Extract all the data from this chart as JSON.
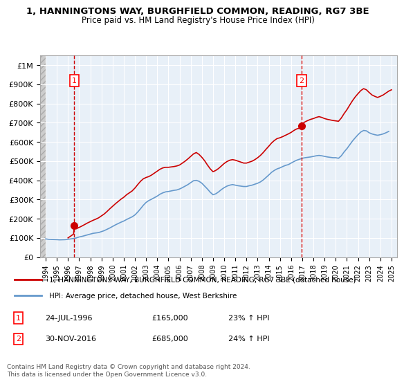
{
  "title": "1, HANNINGTONS WAY, BURGHFIELD COMMON, READING, RG7 3BE",
  "subtitle": "Price paid vs. HM Land Registry's House Price Index (HPI)",
  "legend_line1": "1, HANNINGTONS WAY, BURGHFIELD COMMON, READING, RG7 3BE (detached house)",
  "legend_line2": "HPI: Average price, detached house, West Berkshire",
  "annotation1": {
    "num": "1",
    "date": "24-JUL-1996",
    "price": "£165,000",
    "pct": "23% ↑ HPI",
    "x_year": 1996.56
  },
  "annotation2": {
    "num": "2",
    "date": "30-NOV-2016",
    "price": "£685,000",
    "pct": "24% ↑ HPI",
    "x_year": 2016.92
  },
  "footer": "Contains HM Land Registry data © Crown copyright and database right 2024.\nThis data is licensed under the Open Government Licence v3.0.",
  "ylim": [
    0,
    1050000
  ],
  "yticks": [
    0,
    100000,
    200000,
    300000,
    400000,
    500000,
    600000,
    700000,
    800000,
    900000,
    1000000
  ],
  "ytick_labels": [
    "£0",
    "£100K",
    "£200K",
    "£300K",
    "£400K",
    "£500K",
    "£600K",
    "£700K",
    "£800K",
    "£900K",
    "£1M"
  ],
  "xlim": [
    1993.5,
    2025.5
  ],
  "xticks": [
    1994,
    1995,
    1996,
    1997,
    1998,
    1999,
    2000,
    2001,
    2002,
    2003,
    2004,
    2005,
    2006,
    2007,
    2008,
    2009,
    2010,
    2011,
    2012,
    2013,
    2014,
    2015,
    2016,
    2017,
    2018,
    2019,
    2020,
    2021,
    2022,
    2023,
    2024,
    2025
  ],
  "hpi_color": "#6699cc",
  "price_color": "#cc0000",
  "dot_color": "#cc0000",
  "dashed_color": "#cc0000",
  "background_plot": "#e8f0f8",
  "background_hatch": "#d8d8d8",
  "hpi_data": [
    [
      1994.0,
      95000
    ],
    [
      1994.25,
      93000
    ],
    [
      1994.5,
      92000
    ],
    [
      1994.75,
      91500
    ],
    [
      1995.0,
      91000
    ],
    [
      1995.25,
      90000
    ],
    [
      1995.5,
      90500
    ],
    [
      1995.75,
      91000
    ],
    [
      1996.0,
      93000
    ],
    [
      1996.25,
      95000
    ],
    [
      1996.5,
      97000
    ],
    [
      1996.75,
      100000
    ],
    [
      1997.0,
      105000
    ],
    [
      1997.25,
      108000
    ],
    [
      1997.5,
      112000
    ],
    [
      1997.75,
      116000
    ],
    [
      1998.0,
      120000
    ],
    [
      1998.25,
      124000
    ],
    [
      1998.5,
      126000
    ],
    [
      1998.75,
      128000
    ],
    [
      1999.0,
      133000
    ],
    [
      1999.25,
      138000
    ],
    [
      1999.5,
      145000
    ],
    [
      1999.75,
      152000
    ],
    [
      2000.0,
      160000
    ],
    [
      2000.25,
      168000
    ],
    [
      2000.5,
      175000
    ],
    [
      2000.75,
      182000
    ],
    [
      2001.0,
      188000
    ],
    [
      2001.25,
      196000
    ],
    [
      2001.5,
      203000
    ],
    [
      2001.75,
      210000
    ],
    [
      2002.0,
      220000
    ],
    [
      2002.25,
      235000
    ],
    [
      2002.5,
      252000
    ],
    [
      2002.75,
      270000
    ],
    [
      2003.0,
      285000
    ],
    [
      2003.25,
      295000
    ],
    [
      2003.5,
      302000
    ],
    [
      2003.75,
      310000
    ],
    [
      2004.0,
      318000
    ],
    [
      2004.25,
      328000
    ],
    [
      2004.5,
      335000
    ],
    [
      2004.75,
      340000
    ],
    [
      2005.0,
      342000
    ],
    [
      2005.25,
      345000
    ],
    [
      2005.5,
      348000
    ],
    [
      2005.75,
      350000
    ],
    [
      2006.0,
      355000
    ],
    [
      2006.25,
      362000
    ],
    [
      2006.5,
      370000
    ],
    [
      2006.75,
      378000
    ],
    [
      2007.0,
      388000
    ],
    [
      2007.25,
      398000
    ],
    [
      2007.5,
      400000
    ],
    [
      2007.75,
      395000
    ],
    [
      2008.0,
      385000
    ],
    [
      2008.25,
      370000
    ],
    [
      2008.5,
      355000
    ],
    [
      2008.75,
      338000
    ],
    [
      2009.0,
      325000
    ],
    [
      2009.25,
      330000
    ],
    [
      2009.5,
      340000
    ],
    [
      2009.75,
      352000
    ],
    [
      2010.0,
      362000
    ],
    [
      2010.25,
      370000
    ],
    [
      2010.5,
      375000
    ],
    [
      2010.75,
      378000
    ],
    [
      2011.0,
      375000
    ],
    [
      2011.25,
      372000
    ],
    [
      2011.5,
      370000
    ],
    [
      2011.75,
      368000
    ],
    [
      2012.0,
      368000
    ],
    [
      2012.25,
      372000
    ],
    [
      2012.5,
      375000
    ],
    [
      2012.75,
      380000
    ],
    [
      2013.0,
      385000
    ],
    [
      2013.25,
      392000
    ],
    [
      2013.5,
      402000
    ],
    [
      2013.75,
      415000
    ],
    [
      2014.0,
      428000
    ],
    [
      2014.25,
      442000
    ],
    [
      2014.5,
      452000
    ],
    [
      2014.75,
      460000
    ],
    [
      2015.0,
      465000
    ],
    [
      2015.25,
      472000
    ],
    [
      2015.5,
      478000
    ],
    [
      2015.75,
      482000
    ],
    [
      2016.0,
      490000
    ],
    [
      2016.25,
      498000
    ],
    [
      2016.5,
      505000
    ],
    [
      2016.75,
      510000
    ],
    [
      2017.0,
      515000
    ],
    [
      2017.25,
      518000
    ],
    [
      2017.5,
      520000
    ],
    [
      2017.75,
      522000
    ],
    [
      2018.0,
      525000
    ],
    [
      2018.25,
      528000
    ],
    [
      2018.5,
      530000
    ],
    [
      2018.75,
      528000
    ],
    [
      2019.0,
      525000
    ],
    [
      2019.25,
      522000
    ],
    [
      2019.5,
      520000
    ],
    [
      2019.75,
      518000
    ],
    [
      2020.0,
      518000
    ],
    [
      2020.25,
      515000
    ],
    [
      2020.5,
      528000
    ],
    [
      2020.75,
      548000
    ],
    [
      2021.0,
      565000
    ],
    [
      2021.25,
      585000
    ],
    [
      2021.5,
      605000
    ],
    [
      2021.75,
      622000
    ],
    [
      2022.0,
      638000
    ],
    [
      2022.25,
      652000
    ],
    [
      2022.5,
      660000
    ],
    [
      2022.75,
      658000
    ],
    [
      2023.0,
      648000
    ],
    [
      2023.25,
      642000
    ],
    [
      2023.5,
      638000
    ],
    [
      2023.75,
      635000
    ],
    [
      2024.0,
      638000
    ],
    [
      2024.25,
      642000
    ],
    [
      2024.5,
      648000
    ],
    [
      2024.75,
      655000
    ]
  ],
  "price_data": [
    [
      1996.0,
      100000
    ],
    [
      1996.25,
      110000
    ],
    [
      1996.5,
      120000
    ],
    [
      1996.56,
      165000
    ],
    [
      1996.75,
      148000
    ],
    [
      1997.0,
      155000
    ],
    [
      1997.25,
      162000
    ],
    [
      1997.5,
      170000
    ],
    [
      1997.75,
      178000
    ],
    [
      1998.0,
      185000
    ],
    [
      1998.25,
      192000
    ],
    [
      1998.5,
      198000
    ],
    [
      1998.75,
      205000
    ],
    [
      1999.0,
      215000
    ],
    [
      1999.25,
      225000
    ],
    [
      1999.5,
      238000
    ],
    [
      1999.75,
      252000
    ],
    [
      2000.0,
      265000
    ],
    [
      2000.25,
      278000
    ],
    [
      2000.5,
      290000
    ],
    [
      2000.75,
      302000
    ],
    [
      2001.0,
      312000
    ],
    [
      2001.25,
      325000
    ],
    [
      2001.5,
      335000
    ],
    [
      2001.75,
      345000
    ],
    [
      2002.0,
      360000
    ],
    [
      2002.25,
      378000
    ],
    [
      2002.5,
      395000
    ],
    [
      2002.75,
      408000
    ],
    [
      2003.0,
      415000
    ],
    [
      2003.25,
      420000
    ],
    [
      2003.5,
      428000
    ],
    [
      2003.75,
      438000
    ],
    [
      2004.0,
      448000
    ],
    [
      2004.25,
      458000
    ],
    [
      2004.5,
      465000
    ],
    [
      2004.75,
      468000
    ],
    [
      2005.0,
      468000
    ],
    [
      2005.25,
      470000
    ],
    [
      2005.5,
      472000
    ],
    [
      2005.75,
      475000
    ],
    [
      2006.0,
      480000
    ],
    [
      2006.25,
      490000
    ],
    [
      2006.5,
      500000
    ],
    [
      2006.75,
      512000
    ],
    [
      2007.0,
      525000
    ],
    [
      2007.25,
      538000
    ],
    [
      2007.5,
      545000
    ],
    [
      2007.75,
      535000
    ],
    [
      2008.0,
      520000
    ],
    [
      2008.25,
      502000
    ],
    [
      2008.5,
      480000
    ],
    [
      2008.75,
      460000
    ],
    [
      2009.0,
      445000
    ],
    [
      2009.25,
      452000
    ],
    [
      2009.5,
      462000
    ],
    [
      2009.75,
      475000
    ],
    [
      2010.0,
      488000
    ],
    [
      2010.25,
      498000
    ],
    [
      2010.5,
      505000
    ],
    [
      2010.75,
      508000
    ],
    [
      2011.0,
      505000
    ],
    [
      2011.25,
      500000
    ],
    [
      2011.5,
      495000
    ],
    [
      2011.75,
      490000
    ],
    [
      2012.0,
      490000
    ],
    [
      2012.25,
      495000
    ],
    [
      2012.5,
      500000
    ],
    [
      2012.75,
      508000
    ],
    [
      2013.0,
      518000
    ],
    [
      2013.25,
      530000
    ],
    [
      2013.5,
      545000
    ],
    [
      2013.75,
      562000
    ],
    [
      2014.0,
      578000
    ],
    [
      2014.25,
      595000
    ],
    [
      2014.5,
      608000
    ],
    [
      2014.75,
      618000
    ],
    [
      2015.0,
      622000
    ],
    [
      2015.25,
      628000
    ],
    [
      2015.5,
      635000
    ],
    [
      2015.75,
      642000
    ],
    [
      2016.0,
      650000
    ],
    [
      2016.25,
      660000
    ],
    [
      2016.5,
      668000
    ],
    [
      2016.75,
      672000
    ],
    [
      2016.92,
      685000
    ],
    [
      2017.0,
      695000
    ],
    [
      2017.25,
      705000
    ],
    [
      2017.5,
      712000
    ],
    [
      2017.75,
      718000
    ],
    [
      2018.0,
      722000
    ],
    [
      2018.25,
      728000
    ],
    [
      2018.5,
      732000
    ],
    [
      2018.75,
      728000
    ],
    [
      2019.0,
      722000
    ],
    [
      2019.25,
      718000
    ],
    [
      2019.5,
      715000
    ],
    [
      2019.75,
      712000
    ],
    [
      2020.0,
      710000
    ],
    [
      2020.25,
      708000
    ],
    [
      2020.5,
      725000
    ],
    [
      2020.75,
      748000
    ],
    [
      2021.0,
      768000
    ],
    [
      2021.25,
      792000
    ],
    [
      2021.5,
      815000
    ],
    [
      2021.75,
      835000
    ],
    [
      2022.0,
      852000
    ],
    [
      2022.25,
      868000
    ],
    [
      2022.5,
      878000
    ],
    [
      2022.75,
      872000
    ],
    [
      2023.0,
      858000
    ],
    [
      2023.25,
      845000
    ],
    [
      2023.5,
      838000
    ],
    [
      2023.75,
      832000
    ],
    [
      2024.0,
      838000
    ],
    [
      2024.25,
      845000
    ],
    [
      2024.5,
      855000
    ],
    [
      2024.75,
      865000
    ],
    [
      2025.0,
      872000
    ]
  ]
}
